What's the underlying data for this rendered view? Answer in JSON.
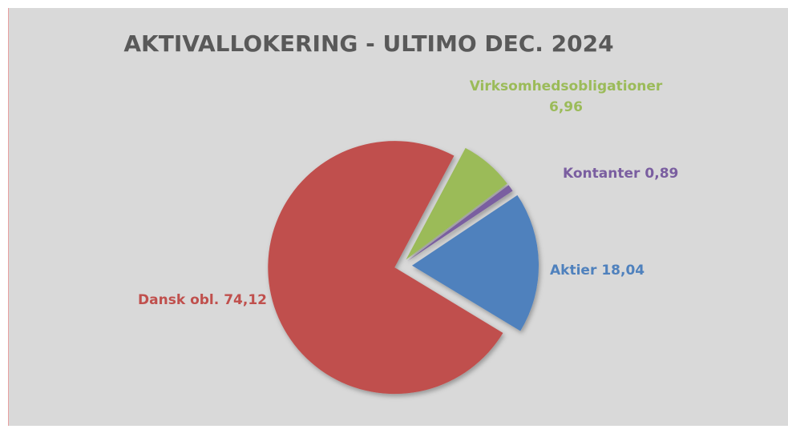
{
  "chart_data": {
    "type": "pie",
    "title": "AKTIVALLOKERING - ULTIMO DEC. 2024",
    "categories": [
      "Virksomhedsobligationer",
      "Kontanter",
      "Aktier",
      "Dansk obl."
    ],
    "values": [
      6.96,
      0.89,
      18.04,
      74.12
    ],
    "value_labels": [
      "6,96",
      "0,89",
      "18,04",
      "74,12"
    ],
    "colors": [
      "#9bbb59",
      "#7a5ea0",
      "#4f81bd",
      "#c0504d"
    ]
  }
}
